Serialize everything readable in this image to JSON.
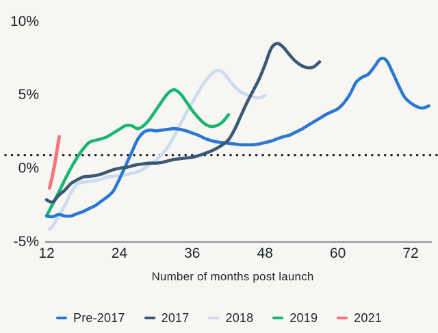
{
  "chart_data": {
    "type": "line",
    "title": "",
    "xlabel": "Number of months post launch",
    "ylabel": "",
    "x_axis": {
      "ticks": [
        {
          "label": "12",
          "value": 12
        },
        {
          "label": "24",
          "value": 24
        },
        {
          "label": "36",
          "value": 36
        },
        {
          "label": "48",
          "value": 48
        },
        {
          "label": "60",
          "value": 60
        },
        {
          "label": "72",
          "value": 72
        }
      ]
    },
    "y_axis": {
      "unit": "%",
      "ticks": [
        {
          "label": "10%",
          "value": 10
        },
        {
          "label": "5%",
          "value": 5
        },
        {
          "label": "0%",
          "value": 0
        },
        {
          "label": "-5%",
          "value": -5
        }
      ]
    },
    "xlim": [
      12,
      75.5
    ],
    "ylim": [
      -5,
      10
    ],
    "grid": false,
    "legend_position": "bottom",
    "threshold_line": {
      "value": 0.85,
      "style": "dotted",
      "color": "#1b232a"
    },
    "series": [
      {
        "name": "Pre-2017",
        "color": "#2a78d2",
        "points": [
          [
            12,
            -3.3
          ],
          [
            13,
            -3.35
          ],
          [
            14,
            -3.2
          ],
          [
            15,
            -3.3
          ],
          [
            16,
            -3.3
          ],
          [
            17,
            -3.15
          ],
          [
            18,
            -3.0
          ],
          [
            19,
            -2.8
          ],
          [
            20,
            -2.6
          ],
          [
            21,
            -2.3
          ],
          [
            22,
            -2.0
          ],
          [
            23,
            -1.6
          ],
          [
            24,
            -0.8
          ],
          [
            25,
            0.1
          ],
          [
            26,
            1.0
          ],
          [
            27,
            1.9
          ],
          [
            28,
            2.4
          ],
          [
            29,
            2.55
          ],
          [
            30,
            2.5
          ],
          [
            31,
            2.55
          ],
          [
            32,
            2.6
          ],
          [
            33,
            2.65
          ],
          [
            34,
            2.6
          ],
          [
            35,
            2.5
          ],
          [
            36,
            2.35
          ],
          [
            37,
            2.2
          ],
          [
            38,
            2.0
          ],
          [
            39,
            1.85
          ],
          [
            40,
            1.75
          ],
          [
            41,
            1.7
          ],
          [
            42,
            1.65
          ],
          [
            43,
            1.6
          ],
          [
            44,
            1.55
          ],
          [
            45,
            1.55
          ],
          [
            46,
            1.55
          ],
          [
            47,
            1.6
          ],
          [
            48,
            1.7
          ],
          [
            49,
            1.8
          ],
          [
            50,
            1.95
          ],
          [
            51,
            2.1
          ],
          [
            52,
            2.2
          ],
          [
            53,
            2.4
          ],
          [
            54,
            2.6
          ],
          [
            55,
            2.85
          ],
          [
            56,
            3.1
          ],
          [
            57,
            3.35
          ],
          [
            58,
            3.6
          ],
          [
            59,
            3.8
          ],
          [
            60,
            4.0
          ],
          [
            61,
            4.4
          ],
          [
            62,
            5.0
          ],
          [
            63,
            5.8
          ],
          [
            64,
            6.15
          ],
          [
            65,
            6.35
          ],
          [
            66,
            6.85
          ],
          [
            67,
            7.4
          ],
          [
            68,
            7.3
          ],
          [
            69,
            6.5
          ],
          [
            70,
            5.6
          ],
          [
            71,
            4.8
          ],
          [
            72,
            4.4
          ],
          [
            73,
            4.15
          ],
          [
            74,
            4.05
          ],
          [
            75,
            4.2
          ]
        ]
      },
      {
        "name": "2017",
        "color": "#3b5875",
        "points": [
          [
            12,
            -2.2
          ],
          [
            13,
            -2.35
          ],
          [
            14,
            -1.9
          ],
          [
            15,
            -1.55
          ],
          [
            16,
            -1.1
          ],
          [
            17,
            -0.85
          ],
          [
            18,
            -0.65
          ],
          [
            19,
            -0.6
          ],
          [
            20,
            -0.55
          ],
          [
            21,
            -0.45
          ],
          [
            22,
            -0.3
          ],
          [
            23,
            -0.15
          ],
          [
            24,
            -0.05
          ],
          [
            25,
            0.0
          ],
          [
            26,
            0.1
          ],
          [
            27,
            0.2
          ],
          [
            28,
            0.25
          ],
          [
            29,
            0.3
          ],
          [
            30,
            0.3
          ],
          [
            31,
            0.35
          ],
          [
            32,
            0.45
          ],
          [
            33,
            0.55
          ],
          [
            34,
            0.6
          ],
          [
            35,
            0.65
          ],
          [
            36,
            0.7
          ],
          [
            37,
            0.8
          ],
          [
            38,
            0.95
          ],
          [
            39,
            1.1
          ],
          [
            40,
            1.3
          ],
          [
            41,
            1.55
          ],
          [
            42,
            1.9
          ],
          [
            43,
            2.6
          ],
          [
            44,
            3.5
          ],
          [
            45,
            4.4
          ],
          [
            46,
            5.2
          ],
          [
            47,
            6.0
          ],
          [
            48,
            7.0
          ],
          [
            49,
            8.1
          ],
          [
            50,
            8.45
          ],
          [
            51,
            8.2
          ],
          [
            52,
            7.7
          ],
          [
            53,
            7.25
          ],
          [
            54,
            6.95
          ],
          [
            55,
            6.8
          ],
          [
            56,
            6.85
          ],
          [
            57,
            7.2
          ]
        ]
      },
      {
        "name": "2018",
        "color": "#cbdcf0",
        "points": [
          [
            12.5,
            -4.2
          ],
          [
            13,
            -4.0
          ],
          [
            14,
            -3.3
          ],
          [
            15,
            -2.6
          ],
          [
            16,
            -1.75
          ],
          [
            17,
            -1.15
          ],
          [
            18,
            -1.0
          ],
          [
            19,
            -0.95
          ],
          [
            20,
            -0.9
          ],
          [
            21,
            -0.8
          ],
          [
            22,
            -0.65
          ],
          [
            23,
            -0.6
          ],
          [
            24,
            -0.55
          ],
          [
            25,
            -0.5
          ],
          [
            26,
            -0.4
          ],
          [
            27,
            -0.3
          ],
          [
            28,
            -0.1
          ],
          [
            29,
            0.2
          ],
          [
            30,
            0.5
          ],
          [
            31,
            0.9
          ],
          [
            32,
            1.4
          ],
          [
            33,
            2.1
          ],
          [
            34,
            2.9
          ],
          [
            35,
            3.7
          ],
          [
            36,
            4.4
          ],
          [
            37,
            5.15
          ],
          [
            38,
            5.8
          ],
          [
            39,
            6.3
          ],
          [
            40,
            6.6
          ],
          [
            41,
            6.5
          ],
          [
            42,
            6.0
          ],
          [
            43,
            5.5
          ],
          [
            44,
            5.15
          ],
          [
            45,
            4.95
          ],
          [
            46,
            4.8
          ],
          [
            47,
            4.75
          ],
          [
            48,
            4.9
          ]
        ]
      },
      {
        "name": "2019",
        "color": "#19b672",
        "points": [
          [
            12,
            -3.3
          ],
          [
            13,
            -2.5
          ],
          [
            14,
            -1.7
          ],
          [
            15,
            -0.85
          ],
          [
            16,
            -0.05
          ],
          [
            17,
            0.65
          ],
          [
            18,
            1.25
          ],
          [
            19,
            1.7
          ],
          [
            20,
            1.85
          ],
          [
            21,
            1.95
          ],
          [
            22,
            2.1
          ],
          [
            23,
            2.35
          ],
          [
            24,
            2.6
          ],
          [
            25,
            2.85
          ],
          [
            26,
            2.85
          ],
          [
            27,
            2.65
          ],
          [
            28,
            2.85
          ],
          [
            29,
            3.3
          ],
          [
            30,
            3.9
          ],
          [
            31,
            4.5
          ],
          [
            32,
            5.05
          ],
          [
            33,
            5.3
          ],
          [
            34,
            5.05
          ],
          [
            35,
            4.5
          ],
          [
            36,
            3.9
          ],
          [
            37,
            3.4
          ],
          [
            38,
            3.0
          ],
          [
            39,
            2.8
          ],
          [
            40,
            2.85
          ],
          [
            41,
            3.1
          ],
          [
            42,
            3.6
          ]
        ]
      },
      {
        "name": "2021",
        "color": "#f4757b",
        "points": [
          [
            12.5,
            -1.4
          ],
          [
            13.2,
            -0.1
          ],
          [
            14.1,
            2.1
          ]
        ]
      }
    ]
  },
  "page": {
    "background": "#f7f6f3",
    "axis_color": "#95989b",
    "text_color": "#20282f"
  }
}
